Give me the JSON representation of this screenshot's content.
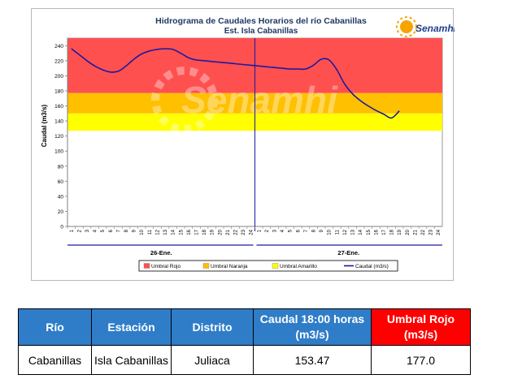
{
  "chart_data": {
    "type": "line",
    "title": "Hidrograma de Caudales Horarios del río Cabanillas",
    "subtitle": "Est. Isla Cabanillas",
    "logo_text": "Senamhi",
    "watermark_text": "Senamhi",
    "ylabel": "Caudal  (m3/s)",
    "ylim": [
      0,
      250
    ],
    "yticks": [
      "0",
      "20",
      "40",
      "60",
      "80",
      "100",
      "120",
      "140",
      "160",
      "180",
      "200",
      "220",
      "240"
    ],
    "xticks": [
      "1",
      "2",
      "3",
      "4",
      "5",
      "6",
      "7",
      "8",
      "9",
      "10",
      "11",
      "12",
      "13",
      "14",
      "15",
      "16",
      "17",
      "18",
      "19",
      "20",
      "21",
      "22",
      "23",
      "24",
      "1",
      "2",
      "3",
      "4",
      "5",
      "6",
      "7",
      "8",
      "9",
      "10",
      "11",
      "12",
      "13",
      "14",
      "15",
      "16",
      "17",
      "18",
      "19",
      "20",
      "21",
      "22",
      "23",
      "24"
    ],
    "day_labels": [
      "26-Ene.",
      "27-Ene."
    ],
    "thresholds": [
      {
        "name": "Umbral Rojo",
        "from": 177,
        "to": 250,
        "color": "#ff5050"
      },
      {
        "name": "Umbral Naranja",
        "from": 150,
        "to": 177,
        "color": "#ffc000"
      },
      {
        "name": "Umbral Amarillo",
        "from": 127,
        "to": 150,
        "color": "#ffff00"
      }
    ],
    "series": [
      {
        "name": "Caudal (m3/s)",
        "color": "#1a1aa0",
        "x": [
          1,
          2,
          3,
          4,
          5,
          6,
          7,
          8,
          9,
          10,
          11,
          12,
          13,
          14,
          15,
          16,
          17,
          18,
          19,
          20,
          21,
          22,
          23,
          24,
          25,
          26,
          27,
          28,
          29,
          30,
          31,
          32,
          33,
          34,
          35,
          36,
          37,
          38,
          39,
          40,
          41,
          42,
          43
        ],
        "values": [
          236,
          228,
          220,
          213,
          208,
          205,
          206,
          213,
          222,
          229,
          233,
          235,
          236,
          235,
          230,
          224,
          221,
          220,
          219,
          218,
          217,
          216,
          215,
          214,
          213,
          212,
          211,
          210,
          209,
          209,
          209,
          214,
          222,
          221,
          208,
          189,
          176,
          167,
          160,
          154,
          149,
          144,
          153.47
        ]
      }
    ],
    "legend": [
      "Umbral Rojo",
      "Umbral Naranja",
      "Umbral Amarillo",
      "Caudal (m3/s)"
    ],
    "legend_position": "bottom",
    "grid": false
  },
  "table": {
    "headers": [
      "Río",
      "Estación",
      "Distrito",
      "Caudal  18:00 horas (m3/s)",
      "Umbral Rojo (m3/s)"
    ],
    "header_colors": [
      "#2f7dc8",
      "#2f7dc8",
      "#2f7dc8",
      "#2f7dc8",
      "#ff0000"
    ],
    "row": [
      "Cabanillas",
      "Isla Cabanillas",
      "Juliaca",
      "153.47",
      "177.0"
    ]
  }
}
